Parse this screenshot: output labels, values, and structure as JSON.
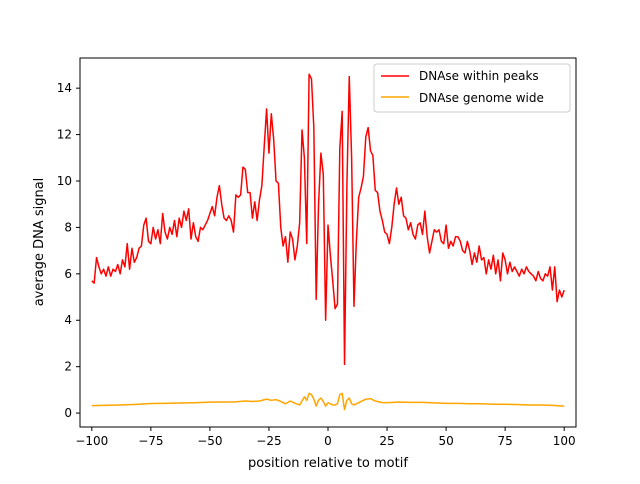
{
  "chart_data": {
    "type": "line",
    "title": "",
    "xlabel": "position relative to motif",
    "ylabel": "average DNA signal",
    "xlim": [
      -105,
      105
    ],
    "ylim": [
      -0.6,
      15.3
    ],
    "xticks": [
      -100,
      -75,
      -50,
      -25,
      0,
      25,
      50,
      75,
      100
    ],
    "yticks": [
      0,
      2,
      4,
      6,
      8,
      10,
      12,
      14
    ],
    "grid": false,
    "legend_position": "top-right",
    "series": [
      {
        "name": "DNAse within peaks",
        "color": "#ff0000",
        "points": [
          [
            -100,
            5.7
          ],
          [
            -99,
            5.6
          ],
          [
            -98,
            6.7
          ],
          [
            -97,
            6.3
          ],
          [
            -96,
            6.0
          ],
          [
            -95,
            6.2
          ],
          [
            -94,
            5.9
          ],
          [
            -93,
            6.3
          ],
          [
            -92,
            5.9
          ],
          [
            -91,
            6.2
          ],
          [
            -90,
            6.1
          ],
          [
            -89,
            6.4
          ],
          [
            -88,
            6.0
          ],
          [
            -87,
            6.6
          ],
          [
            -86,
            6.3
          ],
          [
            -85,
            7.3
          ],
          [
            -84,
            6.2
          ],
          [
            -83,
            7.1
          ],
          [
            -82,
            6.5
          ],
          [
            -81,
            6.7
          ],
          [
            -80,
            7.1
          ],
          [
            -79,
            7.2
          ],
          [
            -78,
            8.1
          ],
          [
            -77,
            8.4
          ],
          [
            -76,
            7.4
          ],
          [
            -75,
            7.3
          ],
          [
            -74,
            8.0
          ],
          [
            -73,
            7.5
          ],
          [
            -72,
            7.9
          ],
          [
            -71,
            7.3
          ],
          [
            -70,
            8.6
          ],
          [
            -69,
            7.8
          ],
          [
            -68,
            7.5
          ],
          [
            -67,
            8.0
          ],
          [
            -66,
            7.7
          ],
          [
            -65,
            8.3
          ],
          [
            -64,
            7.6
          ],
          [
            -63,
            8.4
          ],
          [
            -62,
            8.0
          ],
          [
            -61,
            8.7
          ],
          [
            -60,
            8.3
          ],
          [
            -59,
            8.8
          ],
          [
            -58,
            7.5
          ],
          [
            -57,
            8.2
          ],
          [
            -56,
            7.6
          ],
          [
            -55,
            7.4
          ],
          [
            -54,
            8.0
          ],
          [
            -53,
            7.9
          ],
          [
            -52,
            8.1
          ],
          [
            -51,
            8.3
          ],
          [
            -50,
            8.6
          ],
          [
            -49,
            8.9
          ],
          [
            -48,
            8.5
          ],
          [
            -47,
            9.3
          ],
          [
            -46,
            9.8
          ],
          [
            -45,
            9.0
          ],
          [
            -44,
            8.4
          ],
          [
            -43,
            8.3
          ],
          [
            -42,
            8.5
          ],
          [
            -41,
            8.3
          ],
          [
            -40,
            7.8
          ],
          [
            -39,
            9.4
          ],
          [
            -38,
            9.3
          ],
          [
            -37,
            9.4
          ],
          [
            -36,
            10.6
          ],
          [
            -35,
            10.5
          ],
          [
            -34,
            9.5
          ],
          [
            -33,
            9.5
          ],
          [
            -32,
            8.4
          ],
          [
            -31,
            9.1
          ],
          [
            -30,
            8.3
          ],
          [
            -29,
            9.2
          ],
          [
            -28,
            9.8
          ],
          [
            -27,
            11.5
          ],
          [
            -26,
            13.1
          ],
          [
            -25,
            11.2
          ],
          [
            -24,
            12.9
          ],
          [
            -23,
            11.8
          ],
          [
            -22,
            10.0
          ],
          [
            -21,
            9.9
          ],
          [
            -20,
            8.0
          ],
          [
            -19,
            7.2
          ],
          [
            -18,
            7.6
          ],
          [
            -17,
            6.5
          ],
          [
            -16,
            7.8
          ],
          [
            -15,
            7.5
          ],
          [
            -14,
            6.6
          ],
          [
            -13,
            7.2
          ],
          [
            -12,
            8.2
          ],
          [
            -11,
            12.2
          ],
          [
            -10,
            11.0
          ],
          [
            -9,
            7.3
          ],
          [
            -8,
            14.6
          ],
          [
            -7,
            14.4
          ],
          [
            -6,
            12.3
          ],
          [
            -5,
            4.9
          ],
          [
            -4,
            9.0
          ],
          [
            -3,
            11.2
          ],
          [
            -2,
            10.3
          ],
          [
            -1,
            4.0
          ],
          [
            0,
            8.1
          ],
          [
            1,
            6.8
          ],
          [
            2,
            5.7
          ],
          [
            3,
            4.5
          ],
          [
            4,
            4.7
          ],
          [
            5,
            11.4
          ],
          [
            6,
            13.0
          ],
          [
            7,
            2.1
          ],
          [
            8,
            9.8
          ],
          [
            9,
            14.5
          ],
          [
            10,
            11.0
          ],
          [
            11,
            4.6
          ],
          [
            12,
            7.4
          ],
          [
            13,
            9.3
          ],
          [
            14,
            9.7
          ],
          [
            15,
            10.2
          ],
          [
            16,
            11.9
          ],
          [
            17,
            12.3
          ],
          [
            18,
            11.3
          ],
          [
            19,
            11.1
          ],
          [
            20,
            9.6
          ],
          [
            21,
            9.5
          ],
          [
            22,
            8.7
          ],
          [
            23,
            8.3
          ],
          [
            24,
            7.8
          ],
          [
            25,
            7.7
          ],
          [
            26,
            7.3
          ],
          [
            27,
            8.0
          ],
          [
            28,
            9.0
          ],
          [
            29,
            9.7
          ],
          [
            30,
            9.0
          ],
          [
            31,
            9.3
          ],
          [
            32,
            8.5
          ],
          [
            33,
            8.4
          ],
          [
            34,
            7.9
          ],
          [
            35,
            8.2
          ],
          [
            36,
            7.7
          ],
          [
            37,
            7.5
          ],
          [
            38,
            8.1
          ],
          [
            39,
            8.2
          ],
          [
            40,
            7.7
          ],
          [
            41,
            8.7
          ],
          [
            42,
            7.6
          ],
          [
            43,
            6.9
          ],
          [
            44,
            7.4
          ],
          [
            45,
            7.9
          ],
          [
            46,
            7.8
          ],
          [
            47,
            7.9
          ],
          [
            48,
            7.4
          ],
          [
            49,
            7.3
          ],
          [
            50,
            8.1
          ],
          [
            51,
            7.1
          ],
          [
            52,
            7.4
          ],
          [
            53,
            7.2
          ],
          [
            54,
            7.6
          ],
          [
            55,
            7.6
          ],
          [
            56,
            7.4
          ],
          [
            57,
            7.0
          ],
          [
            58,
            6.9
          ],
          [
            59,
            7.4
          ],
          [
            60,
            7.0
          ],
          [
            61,
            6.4
          ],
          [
            62,
            6.9
          ],
          [
            63,
            6.5
          ],
          [
            64,
            7.2
          ],
          [
            65,
            6.6
          ],
          [
            66,
            6.7
          ],
          [
            67,
            6.0
          ],
          [
            68,
            6.6
          ],
          [
            69,
            6.2
          ],
          [
            70,
            6.8
          ],
          [
            71,
            6.0
          ],
          [
            72,
            6.6
          ],
          [
            73,
            5.7
          ],
          [
            74,
            6.9
          ],
          [
            75,
            6.6
          ],
          [
            76,
            6.0
          ],
          [
            77,
            6.5
          ],
          [
            78,
            6.1
          ],
          [
            79,
            6.3
          ],
          [
            80,
            6.1
          ],
          [
            81,
            5.9
          ],
          [
            82,
            6.2
          ],
          [
            83,
            6.0
          ],
          [
            84,
            6.3
          ],
          [
            85,
            6.1
          ],
          [
            86,
            6.0
          ],
          [
            87,
            5.9
          ],
          [
            88,
            5.7
          ],
          [
            89,
            6.1
          ],
          [
            90,
            5.8
          ],
          [
            91,
            5.7
          ],
          [
            92,
            6.0
          ],
          [
            93,
            5.9
          ],
          [
            94,
            6.3
          ],
          [
            95,
            5.3
          ],
          [
            96,
            6.3
          ],
          [
            97,
            4.8
          ],
          [
            98,
            5.3
          ],
          [
            99,
            5.0
          ],
          [
            100,
            5.3
          ]
        ]
      },
      {
        "name": "DNAse genome wide",
        "color": "#ffa500",
        "points": [
          [
            -100,
            0.32
          ],
          [
            -95,
            0.33
          ],
          [
            -90,
            0.34
          ],
          [
            -85,
            0.36
          ],
          [
            -80,
            0.38
          ],
          [
            -75,
            0.41
          ],
          [
            -70,
            0.42
          ],
          [
            -65,
            0.43
          ],
          [
            -60,
            0.44
          ],
          [
            -55,
            0.45
          ],
          [
            -50,
            0.47
          ],
          [
            -45,
            0.48
          ],
          [
            -40,
            0.48
          ],
          [
            -35,
            0.52
          ],
          [
            -32,
            0.5
          ],
          [
            -29,
            0.52
          ],
          [
            -26,
            0.6
          ],
          [
            -24,
            0.55
          ],
          [
            -22,
            0.58
          ],
          [
            -20,
            0.5
          ],
          [
            -18,
            0.4
          ],
          [
            -16,
            0.52
          ],
          [
            -14,
            0.42
          ],
          [
            -12,
            0.35
          ],
          [
            -10,
            0.7
          ],
          [
            -9,
            0.55
          ],
          [
            -8,
            0.85
          ],
          [
            -7,
            0.8
          ],
          [
            -6,
            0.6
          ],
          [
            -5,
            0.3
          ],
          [
            -4,
            0.55
          ],
          [
            -3,
            0.65
          ],
          [
            -2,
            0.5
          ],
          [
            -1,
            0.3
          ],
          [
            0,
            0.45
          ],
          [
            1,
            0.4
          ],
          [
            2,
            0.35
          ],
          [
            3,
            0.35
          ],
          [
            4,
            0.4
          ],
          [
            5,
            0.8
          ],
          [
            6,
            0.85
          ],
          [
            7,
            0.15
          ],
          [
            8,
            0.55
          ],
          [
            9,
            0.65
          ],
          [
            10,
            0.4
          ],
          [
            11,
            0.35
          ],
          [
            12,
            0.4
          ],
          [
            14,
            0.5
          ],
          [
            16,
            0.6
          ],
          [
            18,
            0.62
          ],
          [
            20,
            0.52
          ],
          [
            23,
            0.45
          ],
          [
            26,
            0.45
          ],
          [
            30,
            0.48
          ],
          [
            35,
            0.46
          ],
          [
            40,
            0.46
          ],
          [
            45,
            0.44
          ],
          [
            50,
            0.42
          ],
          [
            55,
            0.42
          ],
          [
            60,
            0.4
          ],
          [
            65,
            0.4
          ],
          [
            70,
            0.38
          ],
          [
            75,
            0.38
          ],
          [
            80,
            0.37
          ],
          [
            85,
            0.35
          ],
          [
            90,
            0.35
          ],
          [
            95,
            0.33
          ],
          [
            100,
            0.3
          ]
        ]
      }
    ]
  }
}
